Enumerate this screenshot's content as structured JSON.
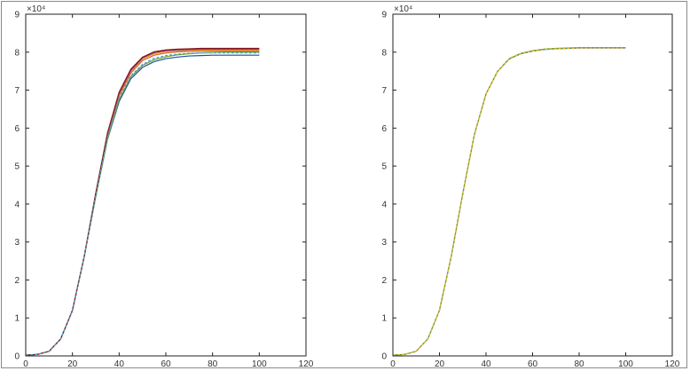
{
  "chart_data": [
    {
      "type": "line",
      "title": "",
      "xlabel": "",
      "ylabel": "",
      "xlim": [
        0,
        120
      ],
      "ylim": [
        0,
        9
      ],
      "y_multiplier_label": "×10⁴",
      "x_ticks": [
        "0",
        "20",
        "40",
        "60",
        "80",
        "100",
        "120"
      ],
      "y_ticks": [
        "0",
        "1",
        "2",
        "3",
        "4",
        "5",
        "6",
        "7",
        "8",
        "9"
      ],
      "grid": false,
      "series": [
        {
          "color": "#1f4e9e",
          "x": [
            0,
            5,
            10,
            15,
            20,
            25,
            30,
            35,
            40,
            45,
            50,
            55,
            60,
            65,
            70,
            75,
            80,
            85,
            90,
            95,
            100
          ],
          "y": [
            0.02,
            0.04,
            0.12,
            0.45,
            1.2,
            2.6,
            4.2,
            5.7,
            6.7,
            7.3,
            7.6,
            7.75,
            7.83,
            7.87,
            7.9,
            7.91,
            7.92,
            7.92,
            7.92,
            7.92,
            7.92
          ]
        },
        {
          "color": "#e0541c",
          "x": [
            0,
            5,
            10,
            15,
            20,
            25,
            30,
            35,
            40,
            45,
            50,
            55,
            60,
            65,
            70,
            75,
            80,
            85,
            90,
            95,
            100
          ],
          "y": [
            0.02,
            0.04,
            0.12,
            0.45,
            1.2,
            2.6,
            4.25,
            5.8,
            6.85,
            7.45,
            7.78,
            7.92,
            7.98,
            8.01,
            8.02,
            8.03,
            8.03,
            8.03,
            8.03,
            8.03,
            8.03
          ]
        },
        {
          "color": "#d9a21b",
          "x": [
            0,
            5,
            10,
            15,
            20,
            25,
            30,
            35,
            40,
            45,
            50,
            55,
            60,
            65,
            70,
            75,
            80,
            85,
            90,
            95,
            100
          ],
          "y": [
            0.02,
            0.04,
            0.12,
            0.45,
            1.2,
            2.6,
            4.27,
            5.83,
            6.9,
            7.5,
            7.82,
            7.96,
            8.02,
            8.04,
            8.05,
            8.06,
            8.06,
            8.06,
            8.06,
            8.06,
            8.06
          ]
        },
        {
          "color": "#7b2c8f",
          "x": [
            0,
            5,
            10,
            15,
            20,
            25,
            30,
            35,
            40,
            45,
            50,
            55,
            60,
            65,
            70,
            75,
            80,
            85,
            90,
            95,
            100
          ],
          "y": [
            0.02,
            0.04,
            0.12,
            0.45,
            1.2,
            2.6,
            4.28,
            5.85,
            6.92,
            7.52,
            7.85,
            7.99,
            8.04,
            8.06,
            8.07,
            8.08,
            8.08,
            8.08,
            8.08,
            8.08,
            8.08
          ]
        },
        {
          "color": "#6aa121",
          "x": [
            0,
            5,
            10,
            15,
            20,
            25,
            30,
            35,
            40,
            45,
            50,
            55,
            60,
            65,
            70,
            75,
            80,
            85,
            90,
            95,
            100
          ],
          "y": [
            0.02,
            0.04,
            0.12,
            0.45,
            1.2,
            2.6,
            4.2,
            5.72,
            6.75,
            7.35,
            7.65,
            7.8,
            7.88,
            7.93,
            7.96,
            7.98,
            7.99,
            8.0,
            8.0,
            8.0,
            8.0
          ]
        },
        {
          "color": "#8b1a1a",
          "x": [
            0,
            5,
            10,
            15,
            20,
            25,
            30,
            35,
            40,
            45,
            50,
            55,
            60,
            65,
            70,
            75,
            80,
            85,
            90,
            95,
            100
          ],
          "y": [
            0.02,
            0.04,
            0.12,
            0.45,
            1.2,
            2.6,
            4.29,
            5.87,
            6.95,
            7.55,
            7.87,
            8.01,
            8.06,
            8.08,
            8.09,
            8.1,
            8.1,
            8.1,
            8.1,
            8.1,
            8.1
          ]
        },
        {
          "color": "#4a9fd8",
          "x": [
            0,
            5,
            10,
            15,
            20,
            25,
            30,
            35,
            40,
            45,
            50,
            55,
            60,
            65,
            70,
            75,
            80,
            85,
            90,
            95,
            100
          ],
          "y": [
            0.02,
            0.04,
            0.12,
            0.45,
            1.2,
            2.6,
            4.22,
            5.75,
            6.78,
            7.38,
            7.68,
            7.84,
            7.91,
            7.95,
            7.97,
            7.98,
            7.98,
            7.98,
            7.98,
            7.98,
            7.98
          ]
        }
      ]
    },
    {
      "type": "line",
      "title": "",
      "xlabel": "",
      "ylabel": "",
      "xlim": [
        0,
        120
      ],
      "ylim": [
        0,
        9
      ],
      "y_multiplier_label": "×10⁴",
      "x_ticks": [
        "0",
        "20",
        "40",
        "60",
        "80",
        "100",
        "120"
      ],
      "y_ticks": [
        "0",
        "1",
        "2",
        "3",
        "4",
        "5",
        "6",
        "7",
        "8",
        "9"
      ],
      "grid": false,
      "series": [
        {
          "color": "#1f4e9e",
          "x": [
            0,
            5,
            10,
            15,
            20,
            25,
            30,
            35,
            40,
            45,
            50,
            55,
            60,
            65,
            70,
            75,
            80,
            85,
            90,
            95,
            100
          ],
          "y": [
            0.02,
            0.04,
            0.12,
            0.45,
            1.2,
            2.6,
            4.27,
            5.83,
            6.9,
            7.5,
            7.82,
            7.96,
            8.03,
            8.07,
            8.09,
            8.1,
            8.11,
            8.11,
            8.11,
            8.11,
            8.11
          ]
        },
        {
          "color": "#6aa121",
          "x": [
            0,
            5,
            10,
            15,
            20,
            25,
            30,
            35,
            40,
            45,
            50,
            55,
            60,
            65,
            70,
            75,
            80,
            85,
            90,
            95,
            100
          ],
          "y": [
            0.02,
            0.04,
            0.12,
            0.45,
            1.2,
            2.6,
            4.27,
            5.83,
            6.9,
            7.5,
            7.83,
            7.97,
            8.04,
            8.08,
            8.1,
            8.11,
            8.12,
            8.12,
            8.12,
            8.12,
            8.12
          ]
        },
        {
          "color": "#e8b830",
          "x": [
            0,
            5,
            10,
            15,
            20,
            25,
            30,
            35,
            40,
            45,
            50,
            55,
            60,
            65,
            70,
            75,
            80,
            85,
            90,
            95,
            100
          ],
          "y": [
            0.02,
            0.04,
            0.12,
            0.45,
            1.2,
            2.6,
            4.27,
            5.83,
            6.9,
            7.5,
            7.82,
            7.96,
            8.03,
            8.07,
            8.09,
            8.1,
            8.11,
            8.11,
            8.11,
            8.11,
            8.11
          ]
        }
      ]
    }
  ]
}
